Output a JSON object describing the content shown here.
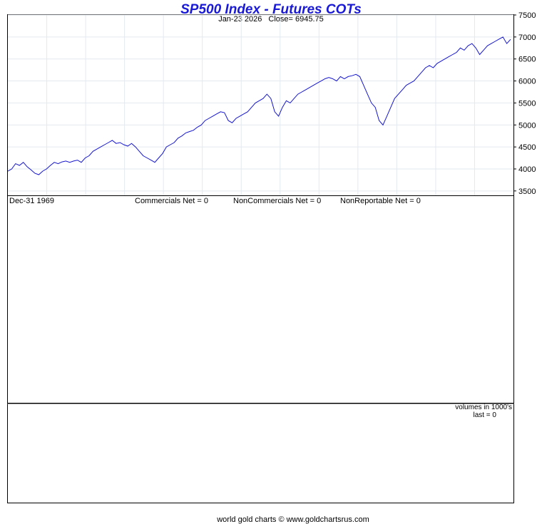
{
  "header": {
    "title": "SP500 Index - Futures COTs",
    "date": "Jan-23  2026",
    "close": "Close= 6945.75"
  },
  "cot_panel": {
    "date": "Dec-31  1969",
    "commercials": "Commercials Net = 0",
    "noncommercials": "NonCommercials Net = 0",
    "nonreportable": "NonReportable Net = 0"
  },
  "volume_panel": {
    "units": "volumes in 1000's",
    "last": "last = 0"
  },
  "footer": "world gold charts © www.goldchartsrus.com",
  "colors": {
    "line": "#1515d0",
    "title": "#1a1ad6",
    "grid": "#e3e9ef"
  },
  "chart_data": {
    "type": "line",
    "title": "SP500 Index - Futures COTs",
    "y_ticks": [
      3500,
      4000,
      4500,
      5000,
      5500,
      6000,
      6500,
      7000,
      7500
    ],
    "ylim": [
      3400,
      7500
    ],
    "grid": true,
    "series": [
      {
        "values": [
          3950,
          4000,
          4120,
          4080,
          4150,
          4050,
          3980,
          3900,
          3870,
          3950,
          4000,
          4080,
          4150,
          4120,
          4160,
          4180,
          4150,
          4180,
          4200,
          4150,
          4250,
          4300,
          4400,
          4450,
          4500,
          4550,
          4600,
          4650,
          4580,
          4600,
          4550,
          4520,
          4580,
          4500,
          4400,
          4300,
          4250,
          4200,
          4150,
          4250,
          4350,
          4500,
          4550,
          4600,
          4700,
          4750,
          4820,
          4850,
          4880,
          4950,
          5000,
          5100,
          5150,
          5200,
          5250,
          5300,
          5280,
          5100,
          5050,
          5150,
          5200,
          5250,
          5300,
          5400,
          5500,
          5550,
          5600,
          5700,
          5600,
          5300,
          5200,
          5400,
          5550,
          5500,
          5600,
          5700,
          5750,
          5800,
          5850,
          5900,
          5950,
          6000,
          6050,
          6080,
          6050,
          6000,
          6100,
          6050,
          6100,
          6120,
          6150,
          6100,
          5900,
          5700,
          5500,
          5400,
          5100,
          5000,
          5200,
          5400,
          5600,
          5700,
          5800,
          5900,
          5950,
          6000,
          6100,
          6200,
          6300,
          6350,
          6300,
          6400,
          6450,
          6500,
          6550,
          6600,
          6650,
          6750,
          6700,
          6800,
          6850,
          6750,
          6600,
          6700,
          6800,
          6850,
          6900,
          6950,
          7000,
          6850,
          6945
        ]
      }
    ]
  }
}
